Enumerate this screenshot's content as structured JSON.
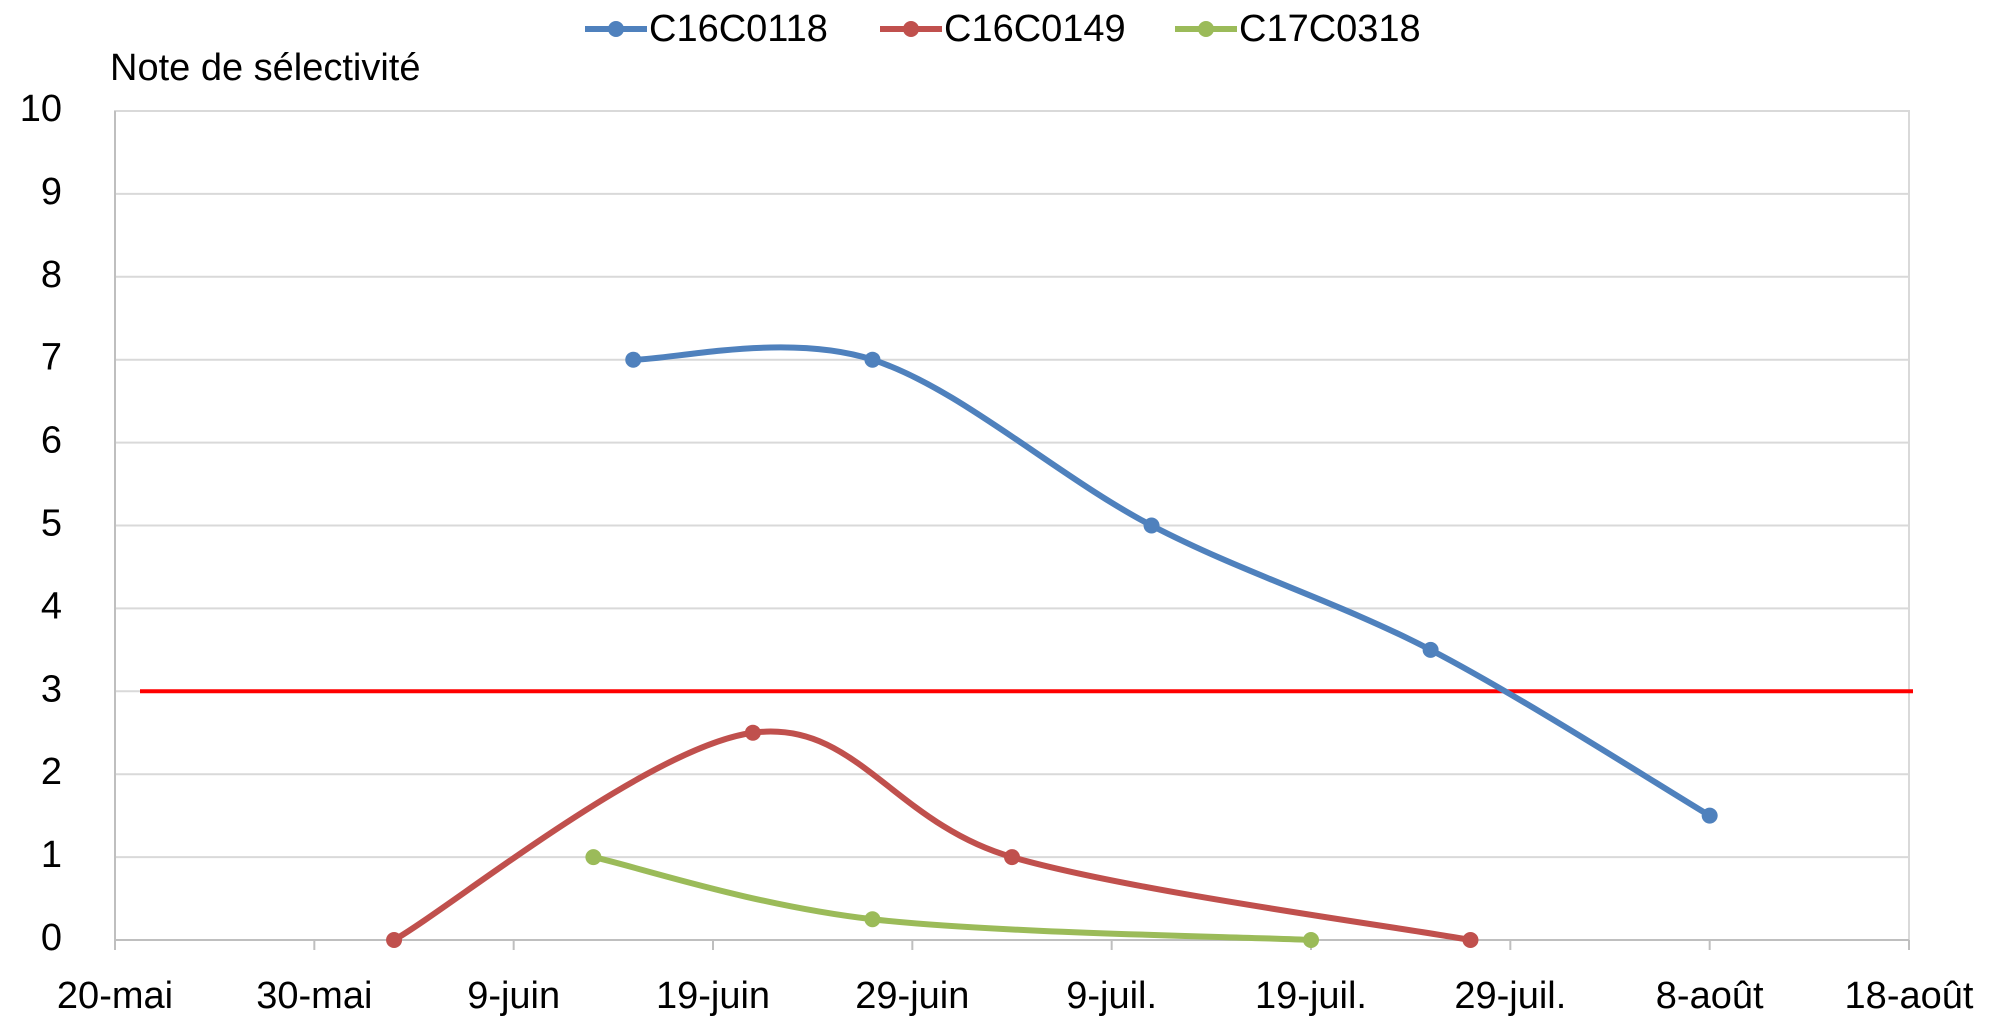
{
  "chart_data": {
    "type": "line",
    "y_axis_label": "Note de sélectivité",
    "series": [
      {
        "name": "C16C0118",
        "color": "#4f81bd",
        "x": [
          166,
          178,
          192,
          206,
          220
        ],
        "values": [
          7,
          7,
          5,
          3.5,
          1.5
        ]
      },
      {
        "name": "C16C0149",
        "color": "#c0504d",
        "x": [
          154,
          172,
          185,
          208
        ],
        "values": [
          0,
          2.5,
          1,
          0
        ]
      },
      {
        "name": "C17C0318",
        "color": "#9bbb59",
        "x": [
          164,
          178,
          200
        ],
        "values": [
          1,
          0.25,
          0
        ]
      }
    ],
    "reference_line": {
      "value": 3,
      "color": "#ff0000"
    },
    "xlim": [
      140,
      230
    ],
    "xticks": [
      {
        "value": 140,
        "label": "20-mai"
      },
      {
        "value": 150,
        "label": "30-mai"
      },
      {
        "value": 160,
        "label": "9-juin"
      },
      {
        "value": 170,
        "label": "19-juin"
      },
      {
        "value": 180,
        "label": "29-juin"
      },
      {
        "value": 190,
        "label": "9-juil."
      },
      {
        "value": 200,
        "label": "19-juil."
      },
      {
        "value": 210,
        "label": "29-juil."
      },
      {
        "value": 220,
        "label": "8-août"
      },
      {
        "value": 230,
        "label": "18-août"
      }
    ],
    "ylim": [
      0,
      10
    ],
    "yticks": [
      0,
      1,
      2,
      3,
      4,
      5,
      6,
      7,
      8,
      9,
      10
    ],
    "grid": true,
    "smooth": true,
    "legend": "top"
  }
}
